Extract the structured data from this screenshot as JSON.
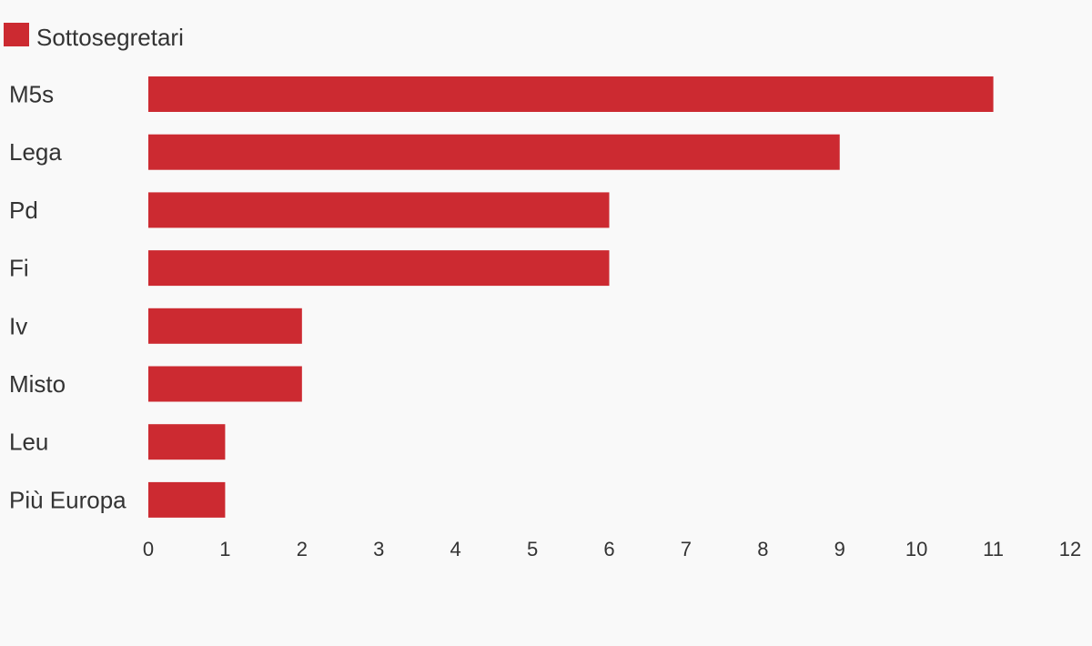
{
  "chart_data": {
    "type": "bar",
    "orientation": "horizontal",
    "categories": [
      "M5s",
      "Lega",
      "Pd",
      "Fi",
      "Iv",
      "Misto",
      "Leu",
      "Più Europa"
    ],
    "series": [
      {
        "name": "Sottosegretari",
        "values": [
          11,
          9,
          6,
          6,
          2,
          2,
          1,
          1
        ],
        "color": "#cc2a31"
      }
    ],
    "xlim": [
      0,
      12
    ],
    "xticks": [
      0,
      1,
      2,
      3,
      4,
      5,
      6,
      7,
      8,
      9,
      10,
      11,
      12
    ],
    "grid": false,
    "legend_position": "top-left"
  }
}
